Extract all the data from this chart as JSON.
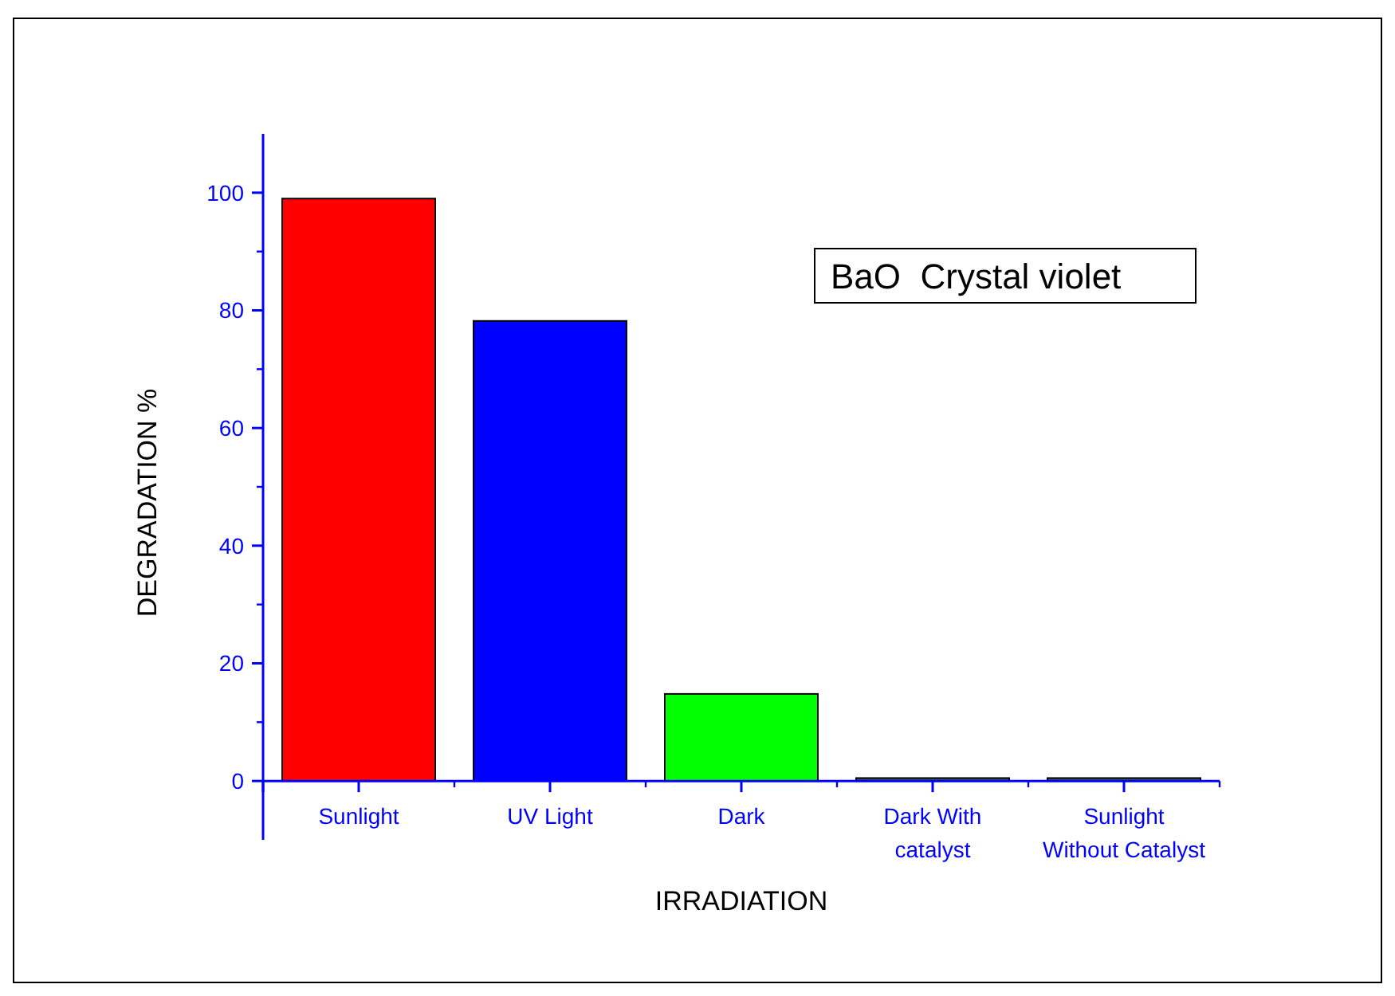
{
  "chart_data": {
    "type": "bar",
    "xlabel": "IRRADIATION",
    "ylabel": "DEGRADATION %",
    "categories": [
      "Sunlight",
      "UV Light",
      "Dark",
      "Dark With\ncatalyst",
      "Sunlight\nWithout Catalyst"
    ],
    "values": [
      99,
      78.2,
      14.8,
      0.5,
      0.5
    ],
    "colors": [
      "#ff0000",
      "#0000ff",
      "#00ff00",
      "#336633",
      "#336633"
    ],
    "ylim": [
      -10,
      110
    ],
    "yticks": [
      0,
      20,
      40,
      60,
      80,
      100
    ],
    "annotations": [
      "BaO  Crystal violet"
    ]
  }
}
